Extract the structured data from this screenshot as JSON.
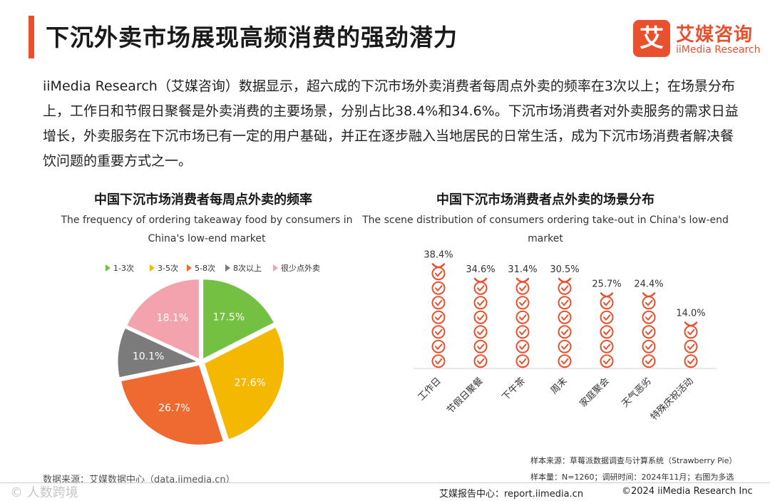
{
  "header": {
    "title": "下沉外卖市场展现高频消费的强劲潜力",
    "logo_cn": "艾媒咨询",
    "logo_en": "iiMedia Research",
    "logo_mark": "艾"
  },
  "intro": "iiMedia Research（艾媒咨询）数据显示，超六成的下沉市场外卖消费者每周点外卖的频率在3次以上；在场景分布上，工作日和节假日聚餐是外卖消费的主要场景，分别占比38.4%和34.6%。下沉市场消费者对外卖服务的需求日益增长，外卖服务在下沉市场已有一定的用户基础，并正在逐步融入当地居民的日常生活，成为下沉市场消费者解决餐饮问题的重要方式之一。",
  "colors": {
    "accent": "#e8502e",
    "green": "#74c043",
    "yellow": "#f5b800",
    "orange": "#ef6a30",
    "gray": "#7b7b7b",
    "pink": "#f2a3ad"
  },
  "chart_data": [
    {
      "type": "pie",
      "title": "中国下沉市场消费者每周点外卖的频率",
      "subtitle": "The frequency of ordering takeaway food by consumers in China's low-end market",
      "legend_position": "top",
      "categories": [
        "1-3次",
        "3-5次",
        "5-8次",
        "8次以上",
        "很少点外卖"
      ],
      "values": [
        17.5,
        27.6,
        26.7,
        10.1,
        18.1
      ],
      "colors": [
        "#74c043",
        "#f5b800",
        "#ef6a30",
        "#7b7b7b",
        "#f2a3ad"
      ],
      "data_labels": [
        "17.5%",
        "27.6%",
        "26.7%",
        "10.1%",
        "18.1%"
      ]
    },
    {
      "type": "bar",
      "title": "中国下沉市场消费者点外卖的场景分布",
      "subtitle": "The scene distribution of consumers ordering take-out in China's low-end market",
      "categories": [
        "工作日",
        "节假日聚餐",
        "下午茶",
        "周末",
        "家庭聚会",
        "天气恶劣",
        "特殊庆祝活动"
      ],
      "values": [
        38.4,
        34.6,
        31.4,
        30.5,
        25.7,
        24.4,
        14.0
      ],
      "data_labels": [
        "38.4%",
        "34.6%",
        "31.4%",
        "30.5%",
        "25.7%",
        "24.4%",
        "14.0%"
      ],
      "ylim": [
        0,
        40
      ],
      "grid": false
    }
  ],
  "footer": {
    "source_left": "数据来源：艾媒数据中心（data.iimedia.cn）",
    "sample_source": "样本来源：草莓派数据调查与计算系统（Strawberry Pie）",
    "sample_size": "样本量：N=1260；调研时间：2024年11月；右图为多选",
    "report_center": "艾媒报告中心：report.iimedia.cn",
    "copyright": "©2024  iiMedia Research  Inc",
    "watermark": "© 人数跨境"
  }
}
